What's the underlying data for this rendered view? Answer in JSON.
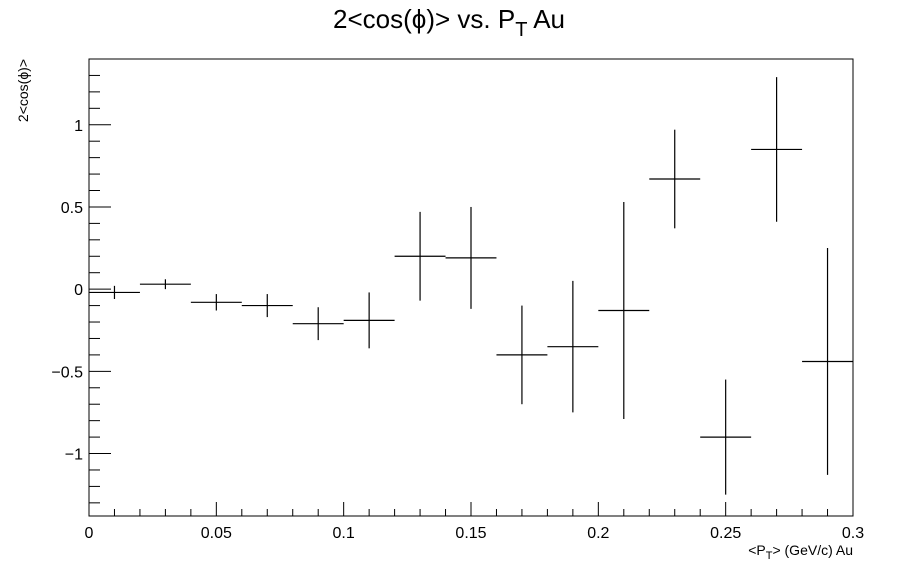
{
  "chart_data": {
    "type": "scatter",
    "title": "2<cos(ϕ)> vs. P",
    "title_sub": "T",
    "title_suffix": " Au",
    "xlabel": "<P",
    "xlabel_sub": "T",
    "xlabel_suffix": "> (GeV/c) Au",
    "ylabel": "2<cos(ϕ)>",
    "xlim": [
      0,
      0.3
    ],
    "ylim": [
      -1.38,
      1.4
    ],
    "grid": false,
    "x_ticks": [
      0,
      0.05,
      0.1,
      0.15,
      0.2,
      0.25,
      0.3
    ],
    "x_tick_labels": [
      "0",
      "0.05",
      "0.1",
      "0.15",
      "0.2",
      "0.25",
      "0.3"
    ],
    "y_ticks": [
      -1,
      -0.5,
      0,
      0.5,
      1
    ],
    "y_tick_labels": [
      "−1",
      "−0.5",
      "0",
      "0.5",
      "1"
    ],
    "x_bin_half_width": 0.01,
    "series": [
      {
        "x": [
          0.01,
          0.03,
          0.05,
          0.07,
          0.09,
          0.11,
          0.13,
          0.15,
          0.17,
          0.19,
          0.21,
          0.23,
          0.25,
          0.27,
          0.29
        ],
        "y": [
          -0.02,
          0.03,
          -0.08,
          -0.1,
          -0.21,
          -0.19,
          0.2,
          0.19,
          -0.4,
          -0.35,
          -0.13,
          0.67,
          -0.9,
          0.85,
          -0.44
        ],
        "yerr": [
          0.04,
          0.03,
          0.05,
          0.07,
          0.1,
          0.17,
          0.27,
          0.31,
          0.3,
          0.4,
          0.66,
          0.3,
          0.35,
          0.44,
          0.69
        ]
      }
    ]
  }
}
